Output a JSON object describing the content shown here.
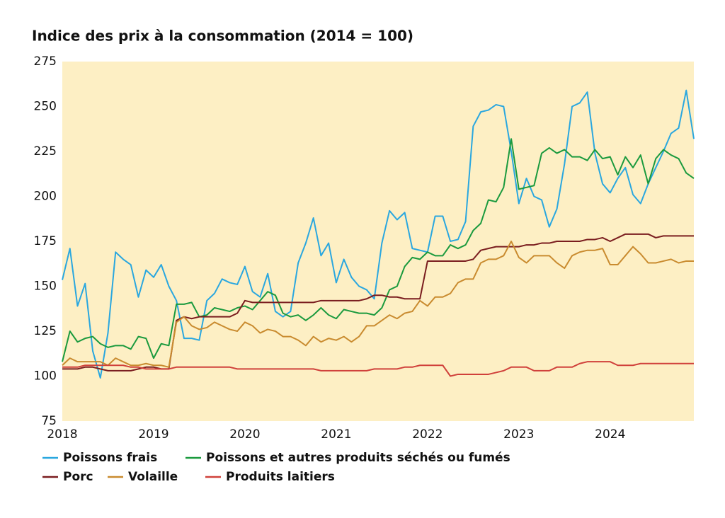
{
  "chart_data": {
    "type": "line",
    "title": "Indice des prix à la consommation (2014 = 100)",
    "categories": [
      "2018",
      null,
      null,
      null,
      null,
      null,
      null,
      null,
      null,
      null,
      null,
      null,
      "2019",
      null,
      null,
      null,
      null,
      null,
      null,
      null,
      null,
      null,
      null,
      null,
      "2020",
      null,
      null,
      null,
      null,
      null,
      null,
      null,
      null,
      null,
      null,
      null,
      "2021",
      null,
      null,
      null,
      null,
      null,
      null,
      null,
      null,
      null,
      null,
      null,
      "2022",
      null,
      null,
      null,
      null,
      null,
      null,
      null,
      null,
      null,
      null,
      null,
      "2023",
      null,
      null,
      null,
      null,
      null,
      null,
      null,
      null,
      null,
      null,
      null,
      "2024",
      null,
      null,
      null,
      null,
      null,
      null,
      null,
      null,
      null,
      null,
      null
    ],
    "ylim": [
      75,
      275
    ],
    "yticks": [
      75,
      100,
      125,
      150,
      175,
      200,
      225,
      250,
      275
    ],
    "grid": false,
    "series": [
      {
        "name": "Poissons frais",
        "color": "#2aa7df",
        "values": [
          153.5,
          171,
          139,
          151.5,
          114,
          99,
          124,
          169,
          165,
          162,
          144,
          159,
          155,
          162,
          150,
          142,
          121,
          121,
          120,
          142,
          146,
          154,
          152,
          151,
          161,
          147,
          144,
          157,
          136,
          133,
          136,
          163,
          174,
          188,
          167,
          174,
          152,
          165,
          155,
          150,
          148,
          143,
          174,
          192,
          187,
          191,
          171,
          170,
          169,
          189,
          189,
          175,
          176,
          186,
          239,
          247,
          248,
          251,
          250,
          225,
          196,
          210,
          200,
          198,
          183,
          193,
          218,
          250,
          252,
          258,
          224,
          207,
          202,
          210,
          216,
          201,
          196,
          207,
          216,
          225,
          235,
          238,
          259,
          232
        ]
      },
      {
        "name": "Poissons et autres produits séchés ou fumés",
        "color": "#1b9a3e",
        "values": [
          108,
          125,
          119,
          121,
          122,
          118,
          116,
          117,
          117,
          115,
          122,
          121,
          110,
          118,
          117,
          140,
          140,
          141,
          133,
          134,
          138,
          137,
          136,
          138,
          139,
          137,
          142,
          147,
          145,
          135,
          133,
          134,
          131,
          134,
          138,
          134,
          132,
          137,
          136,
          135,
          135,
          134,
          138,
          148,
          150,
          161,
          166,
          165,
          169,
          167,
          167,
          173,
          171,
          173,
          181,
          185,
          198,
          197,
          205,
          232,
          204,
          205,
          206,
          224,
          227,
          224,
          226,
          222,
          222,
          220,
          226,
          221,
          222,
          212,
          222,
          216,
          223,
          207,
          221,
          226,
          223,
          221,
          213,
          210
        ]
      },
      {
        "name": "Porc",
        "color": "#7a1d1f",
        "values": [
          104,
          104,
          104,
          105,
          105,
          104,
          103,
          103,
          103,
          103,
          104,
          105,
          105,
          104,
          104,
          131,
          133,
          132,
          133,
          133,
          133,
          133,
          133,
          135,
          142,
          141,
          141,
          141,
          141,
          141,
          141,
          141,
          141,
          141,
          142,
          142,
          142,
          142,
          142,
          142,
          143,
          145,
          145,
          144,
          144,
          143,
          143,
          143,
          164,
          164,
          164,
          164,
          164,
          164,
          165,
          170,
          171,
          172,
          172,
          172,
          172,
          173,
          173,
          174,
          174,
          175,
          175,
          175,
          175,
          176,
          176,
          177,
          175,
          177,
          179,
          179,
          179,
          179,
          177,
          178,
          178,
          178,
          178,
          178
        ]
      },
      {
        "name": "Volaille",
        "color": "#c98b2f",
        "values": [
          106,
          110,
          108,
          108,
          108,
          108,
          106,
          110,
          108,
          106,
          106,
          107,
          106,
          106,
          105,
          130,
          133,
          128,
          126,
          127,
          130,
          128,
          126,
          125,
          130,
          128,
          124,
          126,
          125,
          122,
          122,
          120,
          117,
          122,
          119,
          121,
          120,
          122,
          119,
          122,
          128,
          128,
          131,
          134,
          132,
          135,
          136,
          142,
          139,
          144,
          144,
          146,
          152,
          154,
          154,
          163,
          165,
          165,
          167,
          175,
          166,
          163,
          167,
          167,
          167,
          163,
          160,
          167,
          169,
          170,
          170,
          171,
          162,
          162,
          167,
          172,
          168,
          163,
          163,
          164,
          165,
          163,
          164,
          164
        ]
      },
      {
        "name": "Produits laitiers",
        "color": "#d0413b",
        "values": [
          105,
          105,
          105,
          106,
          106,
          106,
          106,
          106,
          106,
          105,
          105,
          104,
          104,
          104,
          104,
          105,
          105,
          105,
          105,
          105,
          105,
          105,
          105,
          104,
          104,
          104,
          104,
          104,
          104,
          104,
          104,
          104,
          104,
          104,
          103,
          103,
          103,
          103,
          103,
          103,
          103,
          104,
          104,
          104,
          104,
          105,
          105,
          106,
          106,
          106,
          106,
          100,
          101,
          101,
          101,
          101,
          101,
          102,
          103,
          105,
          105,
          105,
          103,
          103,
          103,
          105,
          105,
          105,
          107,
          108,
          108,
          108,
          108,
          106,
          106,
          106,
          107,
          107,
          107,
          107,
          107,
          107,
          107,
          107
        ]
      }
    ]
  }
}
